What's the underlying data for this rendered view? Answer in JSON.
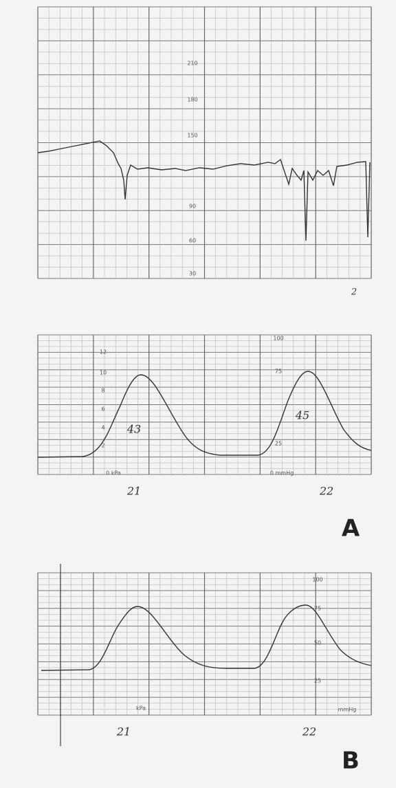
{
  "panel_top": {
    "scale": [
      "210",
      "180",
      "150",
      "90",
      "60",
      "30"
    ],
    "note": "2"
  },
  "panel_a": {
    "left_scale": [
      "12",
      "10",
      "8",
      "6",
      "4",
      "2"
    ],
    "left_unit": "0 kPa",
    "right_scale": [
      "100",
      "75",
      "25"
    ],
    "right_unit": "0 mmHg",
    "marks": [
      "43",
      "45"
    ],
    "times": [
      "21",
      "22"
    ],
    "label": "A"
  },
  "panel_b": {
    "right_scale": [
      "100",
      "75",
      "50",
      "25"
    ],
    "left_unit": "kPa",
    "right_unit": "mmHg",
    "times": [
      "21",
      "22"
    ],
    "label": "B"
  }
}
